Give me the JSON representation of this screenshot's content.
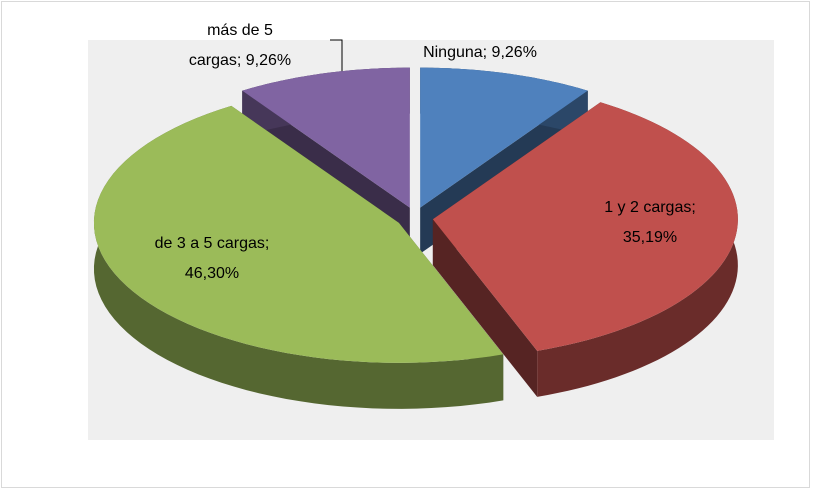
{
  "chart_data": {
    "type": "pie3d",
    "values": [
      9.26,
      35.19,
      46.3,
      9.26
    ],
    "value_labels": [
      "Ninguna; 9,26%",
      "1 y 2 cargas; 35,19%",
      "de 3 a 5 cargas; 46,30%",
      "más de 5 cargas; 9,26%"
    ],
    "colors": [
      "#4f81bd",
      "#c0504d",
      "#9bbb59",
      "#8064a2"
    ]
  }
}
